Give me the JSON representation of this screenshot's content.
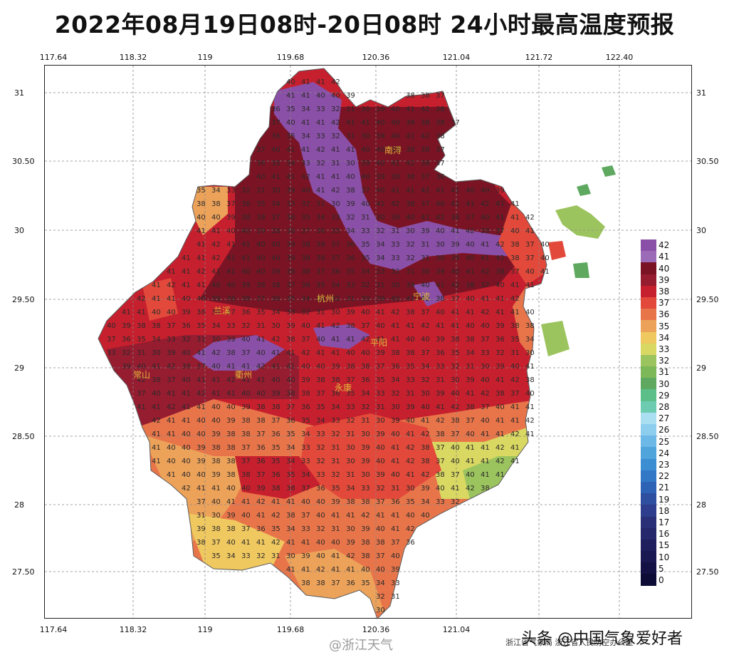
{
  "title": "2022年08月19日08时-20日08时  24小时最高温度预报",
  "axes": {
    "x_ticks": [
      "117.64",
      "118.32",
      "119",
      "119.68",
      "120.36",
      "121.04",
      "121.72",
      "122.40"
    ],
    "y_ticks": [
      "31",
      "30.50",
      "30",
      "29.50",
      "29",
      "28.50",
      "28",
      "27.50"
    ]
  },
  "legend": {
    "values": [
      "42",
      "41",
      "40",
      "39",
      "38",
      "37",
      "36",
      "35",
      "34",
      "33",
      "32",
      "31",
      "30",
      "29",
      "28",
      "27",
      "26",
      "25",
      "24",
      "23",
      "22",
      "21",
      "19",
      "18",
      "17",
      "16",
      "15",
      "10",
      "5",
      "0"
    ],
    "colors": [
      "#8a4fa6",
      "#9c6bb8",
      "#7a1424",
      "#961c30",
      "#c6202e",
      "#e2493a",
      "#e8754a",
      "#eda25a",
      "#f0c860",
      "#d9d862",
      "#9cc45e",
      "#7cb858",
      "#5ea860",
      "#5cbf8a",
      "#6ccbb0",
      "#a9dff0",
      "#8dcdee",
      "#6cb8e6",
      "#4fa4dc",
      "#3c8ed2",
      "#3378c6",
      "#2e62b4",
      "#2e4ea0",
      "#2e3e8c",
      "#2a3078",
      "#26286c",
      "#201f5e",
      "#1a1850",
      "#141244",
      "#0c0c36"
    ]
  },
  "footer": {
    "weibo": "@浙江天气",
    "agency": "浙江省气象局  浙江省人民防空办公室",
    "watermark": "头条 @中国气象爱好者"
  },
  "map_labels": [
    "常山",
    "永康",
    "宁波",
    "南浔",
    "平阳",
    "兰溪",
    "衢州",
    "杭州"
  ],
  "map_value_samples": [
    "40",
    "41",
    "41",
    "42",
    "41",
    "41",
    "40",
    "40",
    "39",
    "38",
    "38",
    "37",
    "36",
    "35",
    "34",
    "33",
    "32",
    "31",
    "30",
    "39",
    "40",
    "41",
    "42",
    "38",
    "37"
  ]
}
